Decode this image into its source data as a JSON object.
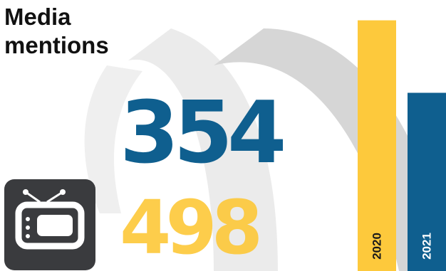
{
  "title_lines": [
    "Media",
    "mentions"
  ],
  "icons": {
    "tile": "tv-icon"
  },
  "colors": {
    "series_2020": "#fdc93c",
    "series_2021": "#0f5f8f",
    "arc_light": "#ebebeb",
    "arc_dark": "#d6d6d6",
    "tile_bg": "#3a3b3e"
  },
  "chart_data": {
    "type": "bar",
    "title": "Media mentions",
    "categories": [
      "2020",
      "2021"
    ],
    "values": [
      498,
      354
    ],
    "ylim": [
      0,
      520
    ],
    "grid": false,
    "legend": "none",
    "data_labels": [
      "498",
      "354"
    ]
  }
}
